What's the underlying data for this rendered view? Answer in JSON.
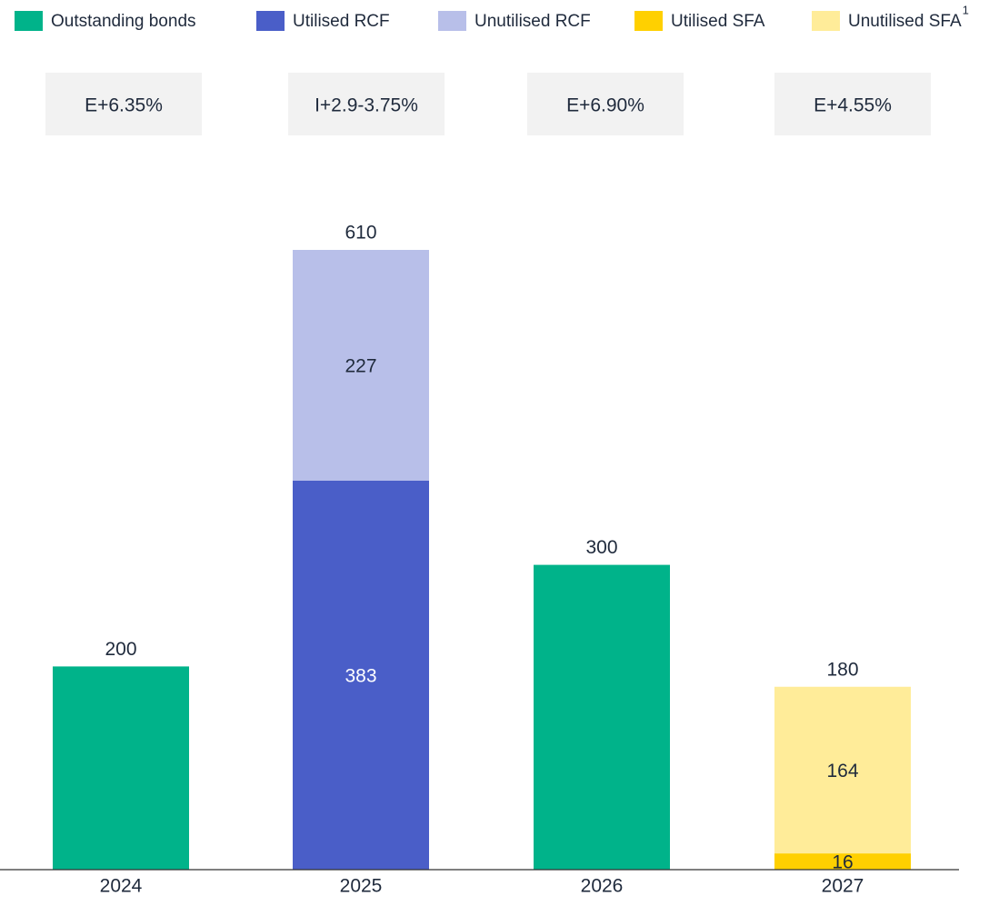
{
  "chart_data": {
    "type": "stacked_bar",
    "categories": [
      "2024",
      "2025",
      "2026",
      "2027"
    ],
    "annotations": [
      "E+6.35%",
      "I+2.9-3.75%",
      "E+6.90%",
      "E+4.55%"
    ],
    "series": [
      {
        "name": "Outstanding bonds",
        "color": "#00b38a",
        "values": [
          200,
          null,
          300,
          null
        ]
      },
      {
        "name": "Utilised RCF",
        "color": "#4a5ec8",
        "values": [
          null,
          383,
          null,
          null
        ]
      },
      {
        "name": "Unutilised RCF",
        "color": "#b8bfe9",
        "values": [
          null,
          227,
          null,
          null
        ]
      },
      {
        "name": "Utilised SFA",
        "color": "#ffd000",
        "values": [
          null,
          null,
          null,
          16
        ]
      },
      {
        "name": "Unutilised SFA",
        "color": "#ffec99",
        "values": [
          null,
          null,
          null,
          164
        ],
        "footnote": "1"
      }
    ],
    "totals": [
      200,
      610,
      300,
      180
    ],
    "legend": "top"
  }
}
